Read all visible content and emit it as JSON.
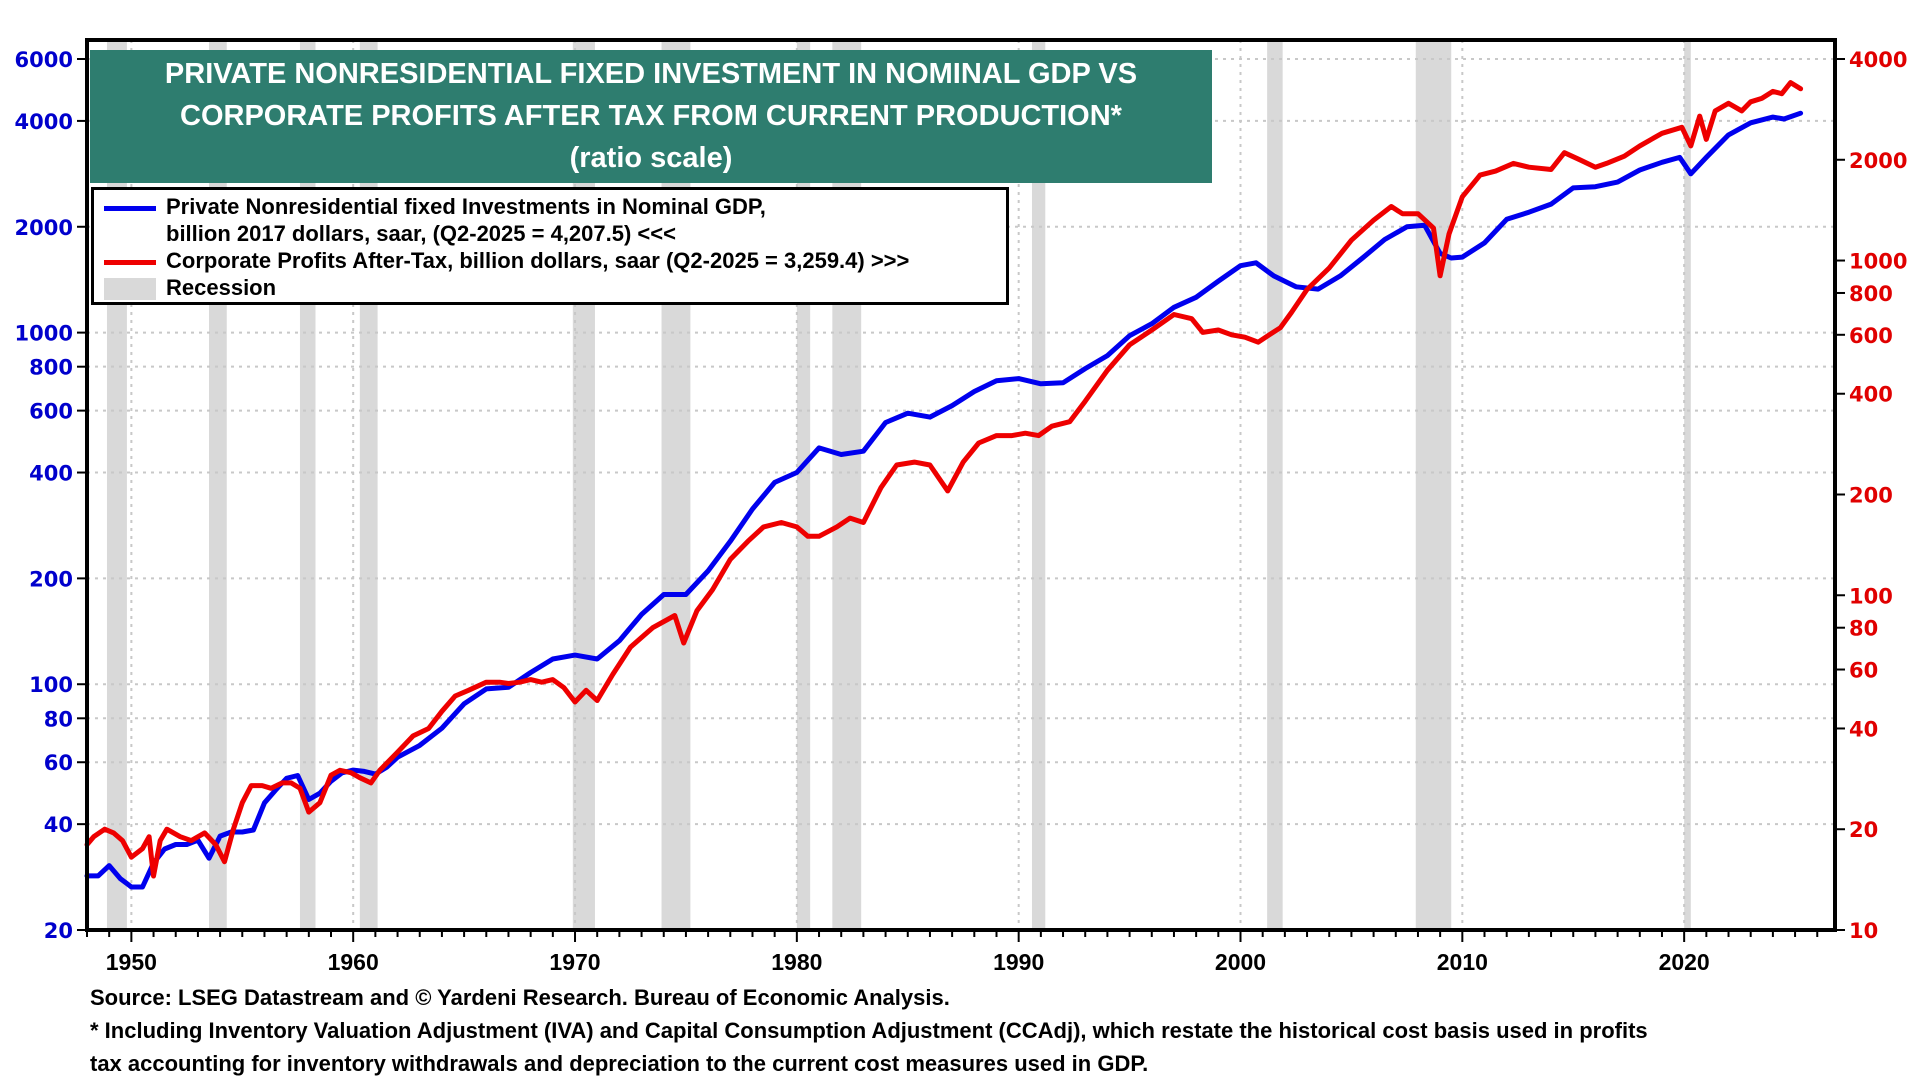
{
  "chart_data": {
    "type": "line",
    "title": "PRIVATE NONRESIDENTIAL FIXED INVESTMENT IN NOMINAL GDP VS CORPORATE PROFITS AFTER TAX FROM CURRENT PRODUCTION*",
    "title_lines": [
      "PRIVATE NONRESIDENTIAL FIXED INVESTMENT IN NOMINAL GDP VS",
      "CORPORATE PROFITS AFTER TAX FROM CURRENT PRODUCTION*",
      "(ratio scale)"
    ],
    "subtitle": "(ratio scale)",
    "xlabel": "",
    "ylabel_left": "",
    "ylabel_right": "",
    "x_range": [
      1948,
      2026.8
    ],
    "x_ticks": [
      1950,
      1960,
      1970,
      1980,
      1990,
      2000,
      2010,
      2020
    ],
    "y_left": {
      "scale": "log",
      "range": [
        20,
        6000
      ],
      "ticks": [
        20,
        40,
        60,
        80,
        100,
        200,
        400,
        600,
        800,
        1000,
        2000,
        4000,
        6000
      ],
      "color": "#0000cc"
    },
    "y_right": {
      "scale": "log",
      "range": [
        10,
        4000
      ],
      "ticks": [
        10,
        20,
        40,
        60,
        80,
        100,
        200,
        400,
        600,
        800,
        1000,
        2000,
        4000
      ],
      "color": "#e00000"
    },
    "grid": true,
    "legend_position": "top-left",
    "legend": [
      {
        "label_line1": "Private Nonresidential fixed Investments in Nominal GDP,",
        "label_line2": "billion 2017 dollars, saar, (Q2-2025 = 4,207.5) <<<",
        "color": "#0000ee",
        "type": "line"
      },
      {
        "label_line1": "Corporate Profits After-Tax, billion dollars, saar (Q2-2025 = 3,259.4) >>>",
        "color": "#ee0000",
        "type": "line"
      },
      {
        "label_line1": "Recession",
        "color": "#d9d9d9",
        "type": "band"
      }
    ],
    "series": [
      {
        "name": "Private Nonresidential fixed Investments in Nominal GDP (left axis)",
        "axis": "left",
        "color": "#0000ee",
        "x": [
          1948.0,
          1948.5,
          1949.0,
          1949.5,
          1950.0,
          1950.5,
          1951.0,
          1951.5,
          1952.0,
          1952.5,
          1953.0,
          1953.5,
          1954.0,
          1954.5,
          1955.0,
          1955.5,
          1956.0,
          1956.5,
          1957.0,
          1957.5,
          1958.0,
          1958.5,
          1959.0,
          1959.5,
          1960.0,
          1960.5,
          1961.0,
          1961.5,
          1962.0,
          1963.0,
          1964.0,
          1965.0,
          1966.0,
          1967.0,
          1968.0,
          1969.0,
          1970.0,
          1971.0,
          1972.0,
          1973.0,
          1974.0,
          1975.0,
          1976.0,
          1977.0,
          1978.0,
          1979.0,
          1980.0,
          1981.0,
          1982.0,
          1983.0,
          1984.0,
          1985.0,
          1986.0,
          1987.0,
          1988.0,
          1989.0,
          1990.0,
          1991.0,
          1992.0,
          1993.0,
          1994.0,
          1995.0,
          1996.0,
          1997.0,
          1998.0,
          1999.0,
          2000.0,
          2000.7,
          2001.5,
          2002.5,
          2003.5,
          2004.5,
          2005.5,
          2006.5,
          2007.5,
          2008.3,
          2009.0,
          2009.5,
          2010.0,
          2011.0,
          2012.0,
          2013.0,
          2014.0,
          2015.0,
          2016.0,
          2017.0,
          2018.0,
          2019.0,
          2019.8,
          2020.3,
          2021.0,
          2022.0,
          2023.0,
          2024.0,
          2024.5,
          2025.25
        ],
        "values": [
          28.5,
          28.5,
          30.5,
          28,
          26.5,
          26.5,
          31,
          34,
          35,
          35,
          36,
          32,
          37,
          38,
          38,
          38.5,
          46,
          50,
          54,
          55,
          47,
          49,
          53,
          56,
          57,
          56.5,
          55.5,
          58,
          62,
          67,
          75,
          88,
          97,
          98,
          108,
          118,
          121,
          118,
          133,
          158,
          180,
          180,
          210,
          255,
          315,
          375,
          400,
          470,
          450,
          460,
          555,
          590,
          575,
          620,
          680,
          730,
          740,
          715,
          720,
          790,
          860,
          980,
          1060,
          1180,
          1260,
          1400,
          1550,
          1580,
          1450,
          1350,
          1330,
          1450,
          1630,
          1840,
          2000,
          2020,
          1680,
          1630,
          1640,
          1800,
          2100,
          2200,
          2320,
          2580,
          2600,
          2680,
          2900,
          3050,
          3150,
          2830,
          3150,
          3650,
          3950,
          4100,
          4050,
          4207.5
        ]
      },
      {
        "name": "Corporate Profits After-Tax (right axis)",
        "axis": "right",
        "color": "#ee0000",
        "x": [
          1948.0,
          1948.3,
          1948.8,
          1949.2,
          1949.6,
          1950.0,
          1950.5,
          1950.8,
          1951.0,
          1951.3,
          1951.6,
          1952.2,
          1952.7,
          1953.3,
          1953.8,
          1954.2,
          1954.6,
          1955.0,
          1955.4,
          1955.9,
          1956.3,
          1956.8,
          1957.2,
          1957.6,
          1958.0,
          1958.5,
          1959.0,
          1959.4,
          1959.9,
          1960.3,
          1960.8,
          1961.2,
          1962.0,
          1962.7,
          1963.4,
          1964.0,
          1964.6,
          1965.2,
          1966.0,
          1966.6,
          1967.0,
          1967.5,
          1968.0,
          1968.5,
          1969.0,
          1969.5,
          1970.0,
          1970.5,
          1971.0,
          1971.7,
          1972.5,
          1973.5,
          1974.5,
          1974.9,
          1975.5,
          1976.2,
          1977.0,
          1977.8,
          1978.5,
          1979.3,
          1980.0,
          1980.5,
          1981.0,
          1981.8,
          1982.4,
          1983.0,
          1983.8,
          1984.5,
          1985.3,
          1986.0,
          1986.8,
          1987.5,
          1988.2,
          1989.0,
          1989.7,
          1990.3,
          1990.9,
          1991.5,
          1992.3,
          1993.0,
          1994.0,
          1995.0,
          1996.0,
          1997.0,
          1997.8,
          1998.3,
          1999.0,
          1999.6,
          2000.2,
          2000.8,
          2001.3,
          2001.8,
          2002.3,
          2003.0,
          2004.0,
          2005.0,
          2006.0,
          2006.8,
          2007.3,
          2008.0,
          2008.7,
          2009.0,
          2009.4,
          2010.0,
          2010.8,
          2011.5,
          2012.3,
          2013.0,
          2014.0,
          2014.6,
          2015.3,
          2016.0,
          2016.5,
          2017.3,
          2018.0,
          2019.0,
          2019.9,
          2020.3,
          2020.7,
          2021.0,
          2021.4,
          2022.0,
          2022.6,
          2023.0,
          2023.5,
          2024.0,
          2024.4,
          2024.8,
          2025.25
        ],
        "values": [
          18,
          19,
          20,
          19.5,
          18.5,
          16.5,
          17.5,
          19,
          14.5,
          18.5,
          20,
          19,
          18.5,
          19.5,
          18,
          16,
          20,
          24,
          27,
          27,
          26.5,
          27.5,
          27.5,
          26.5,
          22.5,
          24,
          29,
          30,
          29.5,
          28.5,
          27.5,
          30,
          34,
          38,
          40,
          45,
          50,
          52,
          55,
          55,
          54.5,
          55,
          56,
          55,
          56,
          53,
          48,
          52,
          48.5,
          58,
          70,
          80,
          87,
          72,
          90,
          104,
          128,
          145,
          160,
          165,
          160,
          150,
          150,
          160,
          170,
          165,
          210,
          245,
          250,
          245,
          205,
          250,
          285,
          300,
          300,
          305,
          300,
          320,
          330,
          380,
          470,
          560,
          620,
          690,
          670,
          610,
          620,
          600,
          590,
          570,
          600,
          630,
          700,
          820,
          950,
          1150,
          1320,
          1450,
          1380,
          1380,
          1250,
          900,
          1200,
          1550,
          1800,
          1850,
          1950,
          1900,
          1870,
          2100,
          2000,
          1900,
          1950,
          2050,
          2200,
          2400,
          2500,
          2200,
          2700,
          2300,
          2800,
          2950,
          2800,
          2980,
          3050,
          3200,
          3150,
          3400,
          3259.4
        ]
      }
    ],
    "recessions": [
      [
        1948.9,
        1949.8
      ],
      [
        1953.5,
        1954.3
      ],
      [
        1957.6,
        1958.3
      ],
      [
        1960.3,
        1961.1
      ],
      [
        1969.9,
        1970.9
      ],
      [
        1973.9,
        1975.2
      ],
      [
        1980.0,
        1980.6
      ],
      [
        1981.6,
        1982.9
      ],
      [
        1990.6,
        1991.2
      ],
      [
        2001.2,
        2001.9
      ],
      [
        2007.9,
        2009.5
      ],
      [
        2020.0,
        2020.3
      ]
    ]
  },
  "footer": {
    "source": "Source: LSEG Datastream and © Yardeni Research. Bureau of Economic Analysis.",
    "note_line1": "* Including Inventory Valuation Adjustment (IVA) and Capital Consumption Adjustment (CCAdj), which restate the historical cost basis used in profits",
    "note_line2": "tax accounting for inventory withdrawals and depreciation to the current cost measures used in GDP."
  }
}
